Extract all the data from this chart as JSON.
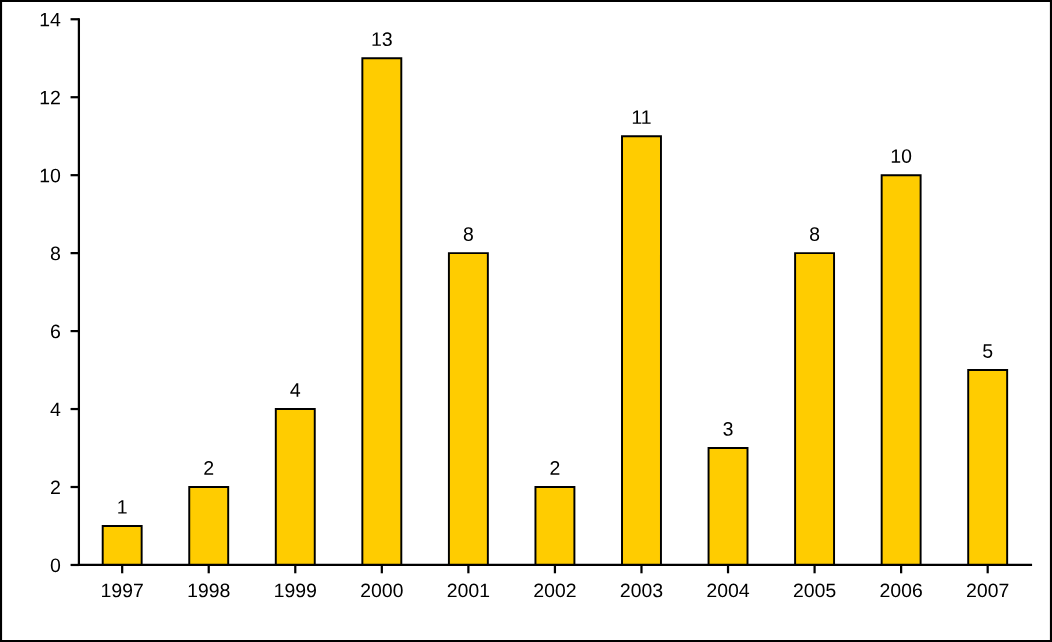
{
  "chart_data": {
    "type": "bar",
    "categories": [
      "1997",
      "1998",
      "1999",
      "2000",
      "2001",
      "2002",
      "2003",
      "2004",
      "2005",
      "2006",
      "2007"
    ],
    "values": [
      1,
      2,
      4,
      13,
      8,
      2,
      11,
      3,
      8,
      10,
      5
    ],
    "color": "#ffcc00",
    "ylim": [
      0,
      14
    ],
    "yticks": [
      0,
      2,
      4,
      6,
      8,
      10,
      12,
      14
    ],
    "data_labels": true,
    "grid": false,
    "legend": false
  }
}
